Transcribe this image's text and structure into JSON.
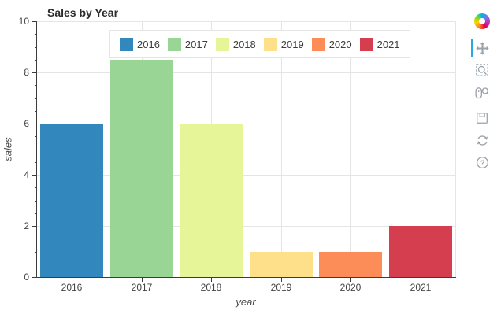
{
  "chart_data": {
    "type": "bar",
    "title": "Sales by Year",
    "categories": [
      "2016",
      "2017",
      "2018",
      "2019",
      "2020",
      "2021"
    ],
    "values": [
      6,
      8.5,
      6,
      1,
      1,
      2
    ],
    "bar_colors": [
      "#3288bd",
      "#99d594",
      "#e6f598",
      "#fee08b",
      "#fc8d59",
      "#d53e4f"
    ],
    "xlabel": "year",
    "ylabel": "sales",
    "ylim": [
      0,
      10
    ],
    "ytick_major_step": 2,
    "ytick_minor_step": 0.5,
    "ytick_labels": [
      "0",
      "2",
      "4",
      "6",
      "8",
      "10"
    ],
    "grid": "on",
    "legend": {
      "position": "top_center",
      "entries": [
        "2016",
        "2017",
        "2018",
        "2019",
        "2020",
        "2021"
      ]
    }
  },
  "toolbar": {
    "logo": "bokeh-logo",
    "tools": [
      {
        "name": "pan-tool",
        "active": true
      },
      {
        "name": "box-zoom-tool",
        "active": false
      },
      {
        "name": "wheel-zoom-tool",
        "active": false
      },
      {
        "name": "save-tool",
        "active": false
      },
      {
        "name": "reset-tool",
        "active": false
      },
      {
        "name": "help-tool",
        "active": false
      }
    ],
    "active_color": "#26aae1"
  },
  "colors": {
    "grid": "#e5e5e5",
    "axis": "#3c3c3c",
    "tick_label": "#444444",
    "title": "#2b2b2b",
    "icon": "#9aa2aa",
    "legend_border": "#e5e5e5"
  }
}
